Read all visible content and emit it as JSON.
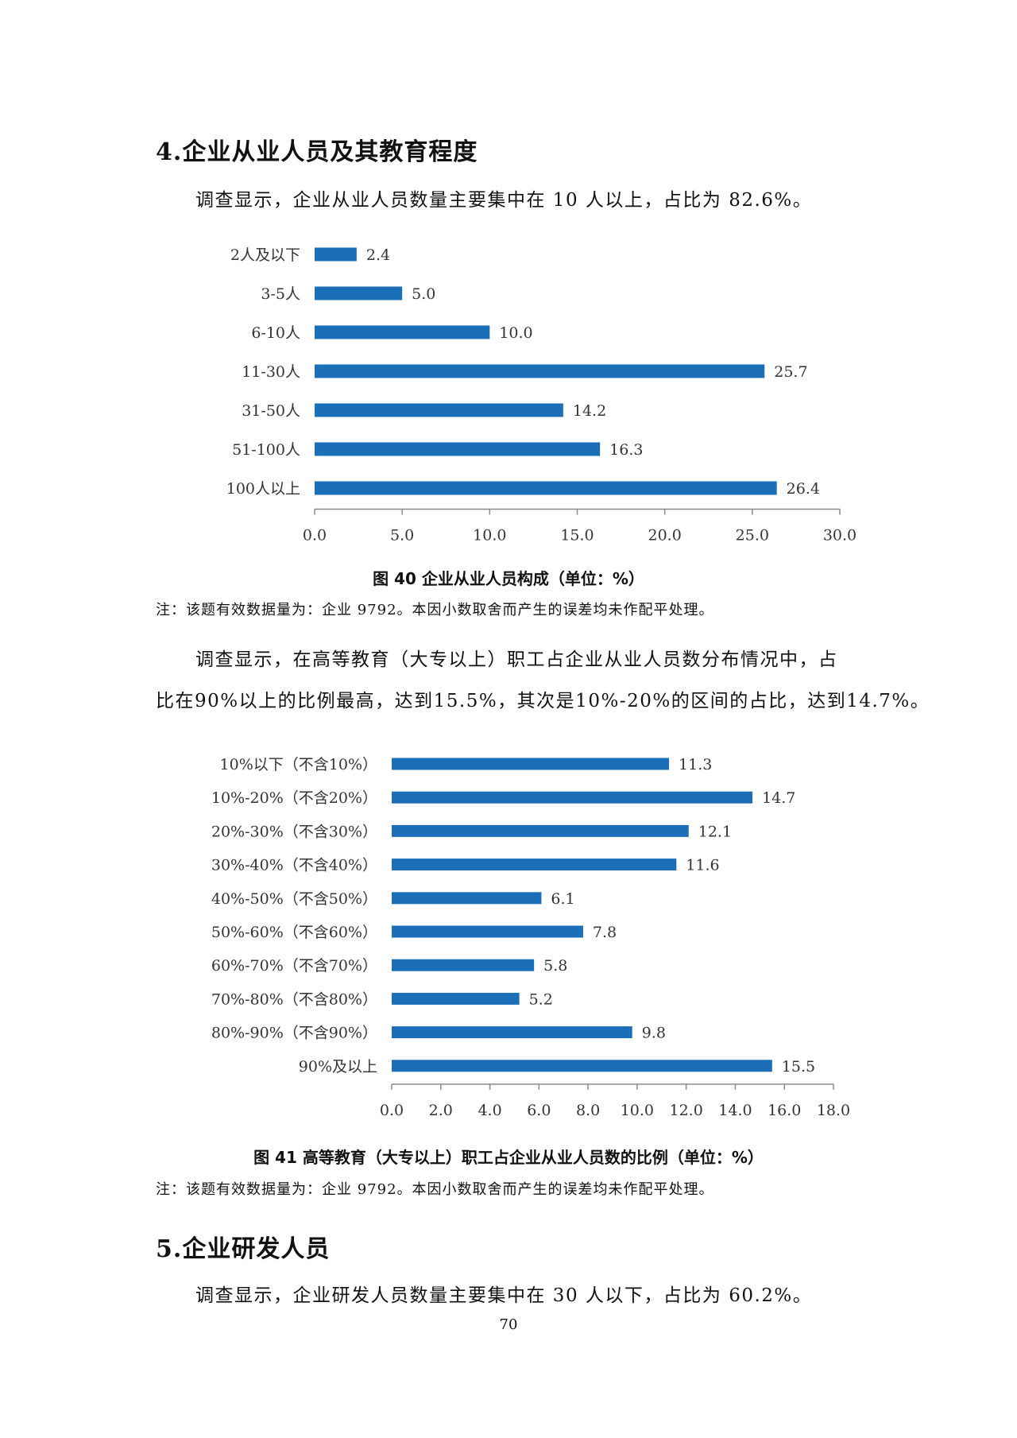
{
  "section4": {
    "heading": "4.企业从业人员及其教育程度",
    "para1": "调查显示，企业从业人员数量主要集中在 10 人以上，占比为 82.6%。",
    "para2_line1": "调查显示，在高等教育（大专以上）职工占企业从业人员数分布情况中，占",
    "para2_line2": "比在90%以上的比例最高，达到15.5%，其次是10%-20%的区间的占比，达到14.7%。"
  },
  "fig40": {
    "caption": "图 40  企业从业人员构成（单位：%）",
    "note": "注：该题有效数据量为：企业 9792。本因小数取舍而产生的误差均未作配平处理。"
  },
  "fig41": {
    "caption": "图 41  高等教育（大专以上）职工占企业从业人员数的比例（单位：%）",
    "note": "注：该题有效数据量为：企业 9792。本因小数取舍而产生的误差均未作配平处理。"
  },
  "section5": {
    "heading": "5.企业研发人员",
    "para1": "调查显示，企业研发人员数量主要集中在 30 人以下，占比为 60.2%。"
  },
  "page_number": "70",
  "chart_data": [
    {
      "type": "bar",
      "orientation": "horizontal",
      "categories": [
        "2人及以下",
        "3-5人",
        "6-10人",
        "11-30人",
        "31-50人",
        "51-100人",
        "100人以上"
      ],
      "values": [
        2.4,
        5.0,
        10.0,
        25.7,
        14.2,
        16.3,
        26.4
      ],
      "value_labels": [
        "2.4",
        "5.0",
        "10.0",
        "25.7",
        "14.2",
        "16.3",
        "26.4"
      ],
      "xlim": [
        0,
        30
      ],
      "ticks": [
        "0.0",
        "5.0",
        "10.0",
        "15.0",
        "20.0",
        "25.0",
        "30.0"
      ],
      "bar_color": "#1a6fb8",
      "grid": false,
      "legend": "none"
    },
    {
      "type": "bar",
      "orientation": "horizontal",
      "categories": [
        "10%以下（不含10%）",
        "10%-20%（不含20%）",
        "20%-30%（不含30%）",
        "30%-40%（不含40%）",
        "40%-50%（不含50%）",
        "50%-60%（不含60%）",
        "60%-70%（不含70%）",
        "70%-80%（不含80%）",
        "80%-90%（不含90%）",
        "90%及以上"
      ],
      "values": [
        11.3,
        14.7,
        12.1,
        11.6,
        6.1,
        7.8,
        5.8,
        5.2,
        9.8,
        15.5
      ],
      "value_labels": [
        "11.3",
        "14.7",
        "12.1",
        "11.6",
        "6.1",
        "7.8",
        "5.8",
        "5.2",
        "9.8",
        "15.5"
      ],
      "xlim": [
        0,
        18
      ],
      "ticks": [
        "0.0",
        "2.0",
        "4.0",
        "6.0",
        "8.0",
        "10.0",
        "12.0",
        "14.0",
        "16.0",
        "18.0"
      ],
      "bar_color": "#1a6fb8",
      "grid": false,
      "legend": "none"
    }
  ]
}
